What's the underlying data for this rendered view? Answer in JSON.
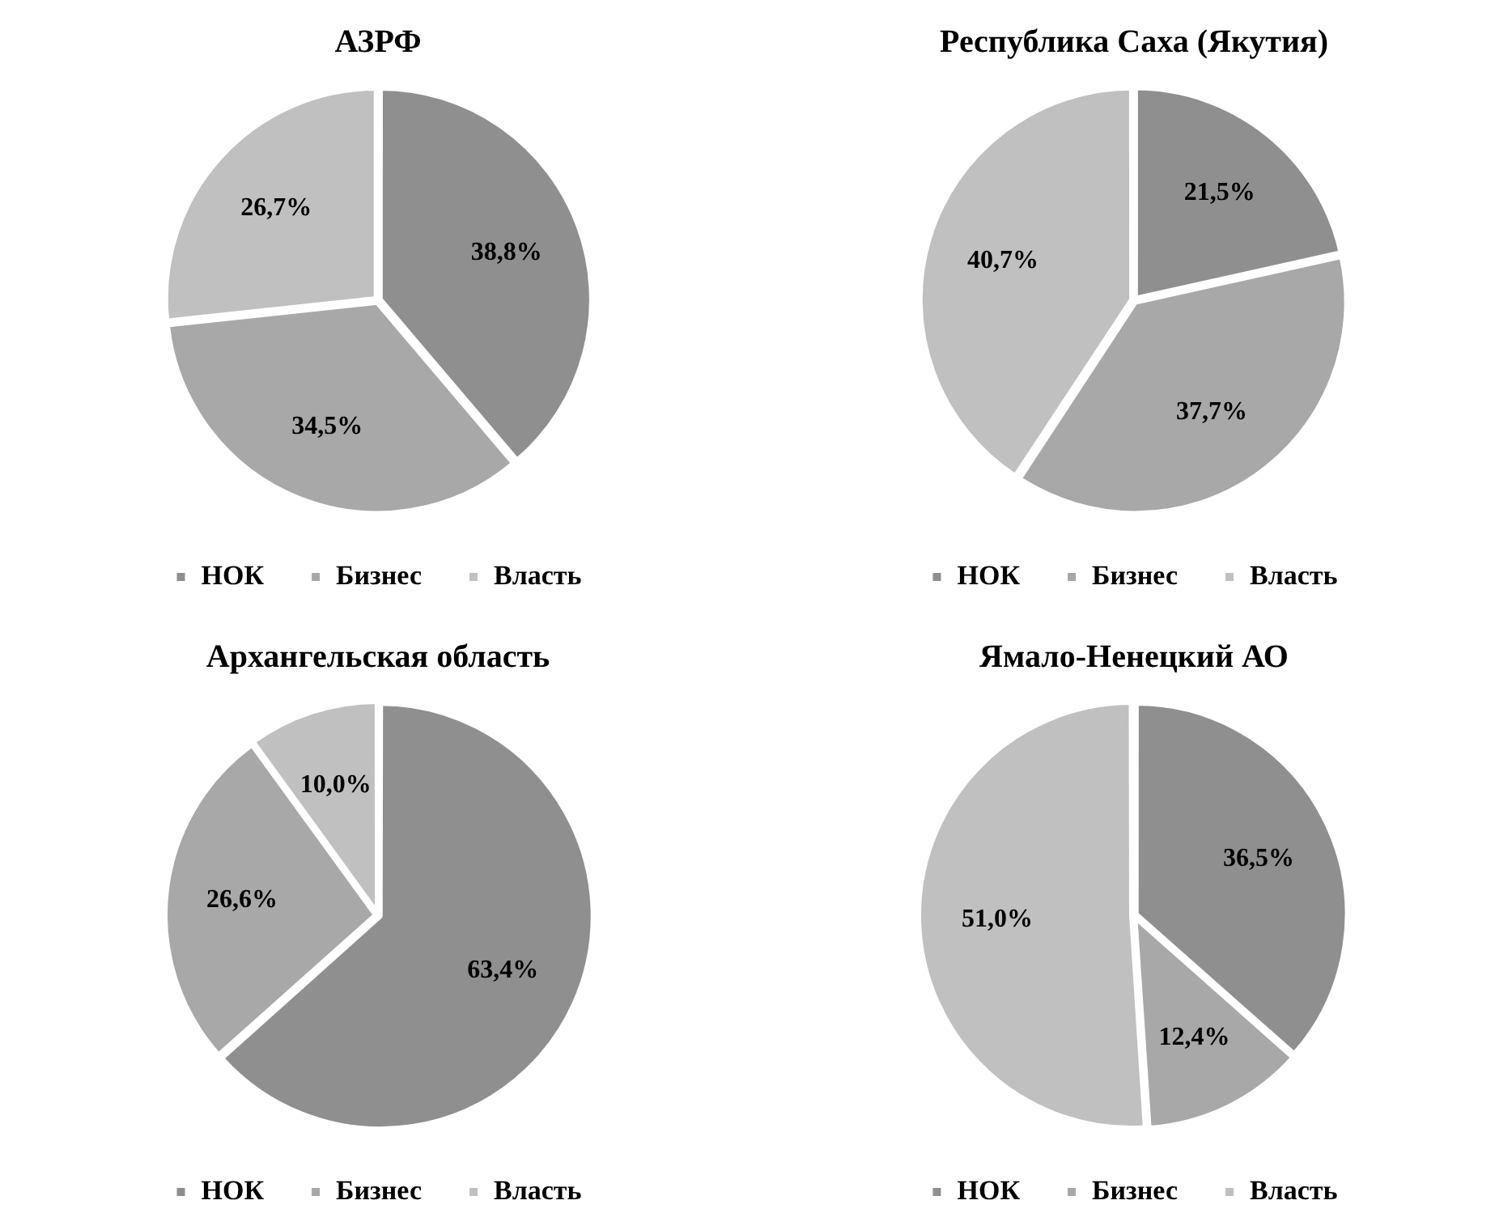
{
  "chart_data": [
    {
      "type": "pie",
      "title": "АЗРФ",
      "categories": [
        "НОК",
        "Бизнес",
        "Власть"
      ],
      "values": [
        38.8,
        34.5,
        26.7
      ],
      "colors": [
        "#8f8f8f",
        "#a8a8a8",
        "#c0c0c0"
      ],
      "value_labels": [
        "38,8%",
        "34,5%",
        "26,7%"
      ],
      "legend": "bottom"
    },
    {
      "type": "pie",
      "title": "Республика Саха (Якутия)",
      "categories": [
        "НОК",
        "Бизнес",
        "Власть"
      ],
      "values": [
        21.5,
        37.7,
        40.7
      ],
      "colors": [
        "#8f8f8f",
        "#a8a8a8",
        "#c0c0c0"
      ],
      "value_labels": [
        "21,5%",
        "37,7%",
        "40,7%"
      ],
      "legend": "bottom"
    },
    {
      "type": "pie",
      "title": "Архангельская область",
      "categories": [
        "НОК",
        "Бизнес",
        "Власть"
      ],
      "values": [
        63.4,
        26.6,
        10.0
      ],
      "colors": [
        "#8f8f8f",
        "#a8a8a8",
        "#c0c0c0"
      ],
      "value_labels": [
        "63,4%",
        "26,6%",
        "10,0%"
      ],
      "legend": "bottom"
    },
    {
      "type": "pie",
      "title": "Ямало-Ненецкий АО",
      "categories": [
        "НОК",
        "Бизнес",
        "Власть"
      ],
      "values": [
        36.5,
        12.4,
        51.0
      ],
      "colors": [
        "#8f8f8f",
        "#a8a8a8",
        "#c0c0c0"
      ],
      "value_labels": [
        "36,5%",
        "12,4%",
        "51,0%"
      ],
      "legend": "bottom"
    }
  ]
}
